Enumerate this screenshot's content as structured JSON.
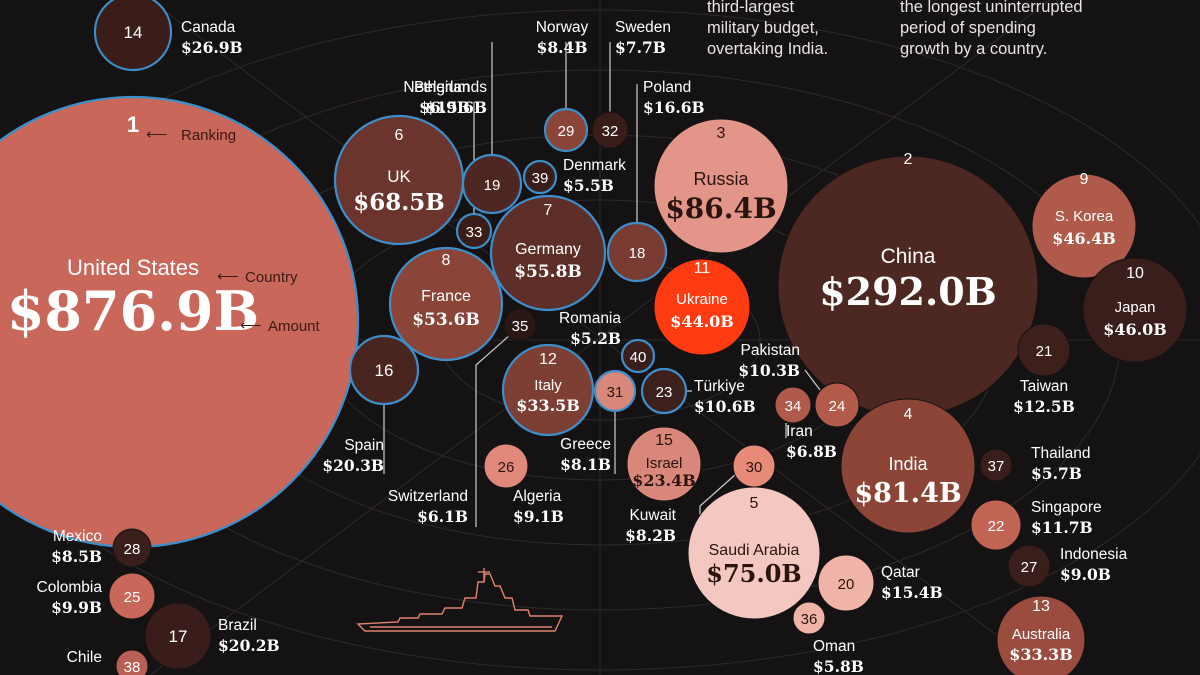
{
  "notes": {
    "top_center": [
      "third-largest",
      "military budget,",
      "overtaking India."
    ],
    "top_right": [
      "the longest uninterrupted",
      "period of spending",
      "growth by a country."
    ]
  },
  "legend_keys": {
    "ranking": "Ranking",
    "country": "Country",
    "amount": "Amount"
  },
  "colors": {
    "background": "#141213",
    "nato_outline": "#3d8fcc",
    "highlight": "#ff3b12",
    "text": "#ffffff"
  },
  "chart_data": {
    "type": "bubble",
    "title": "",
    "value_unit": "USD billions",
    "bubbles": [
      {
        "rank": 1,
        "country": "United States",
        "amount": "$876.9B",
        "value": 876.9,
        "nato": true
      },
      {
        "rank": 2,
        "country": "China",
        "amount": "$292.0B",
        "value": 292.0
      },
      {
        "rank": 3,
        "country": "Russia",
        "amount": "$86.4B",
        "value": 86.4
      },
      {
        "rank": 4,
        "country": "India",
        "amount": "$81.4B",
        "value": 81.4
      },
      {
        "rank": 5,
        "country": "Saudi Arabia",
        "amount": "$75.0B",
        "value": 75.0
      },
      {
        "rank": 6,
        "country": "UK",
        "amount": "$68.5B",
        "value": 68.5,
        "nato": true
      },
      {
        "rank": 7,
        "country": "Germany",
        "amount": "$55.8B",
        "value": 55.8,
        "nato": true
      },
      {
        "rank": 8,
        "country": "France",
        "amount": "$53.6B",
        "value": 53.6,
        "nato": true
      },
      {
        "rank": 9,
        "country": "S. Korea",
        "amount": "$46.4B",
        "value": 46.4
      },
      {
        "rank": 10,
        "country": "Japan",
        "amount": "$46.0B",
        "value": 46.0
      },
      {
        "rank": 11,
        "country": "Ukraine",
        "amount": "$44.0B",
        "value": 44.0,
        "highlight": true
      },
      {
        "rank": 12,
        "country": "Italy",
        "amount": "$33.5B",
        "value": 33.5,
        "nato": true
      },
      {
        "rank": 13,
        "country": "Australia",
        "amount": "$33.3B",
        "value": 33.3
      },
      {
        "rank": 14,
        "country": "Canada",
        "amount": "$26.9B",
        "value": 26.9,
        "nato": true
      },
      {
        "rank": 15,
        "country": "Israel",
        "amount": "$23.4B",
        "value": 23.4
      },
      {
        "rank": 16,
        "country": "Spain",
        "amount": "$20.3B",
        "value": 20.3,
        "nato": true
      },
      {
        "rank": 17,
        "country": "Brazil",
        "amount": "$20.2B",
        "value": 20.2
      },
      {
        "rank": 18,
        "country": "Poland",
        "amount": "$16.6B",
        "value": 16.6,
        "nato": true
      },
      {
        "rank": 19,
        "country": "Netherlands",
        "amount": "$15.6B",
        "value": 15.6,
        "nato": true
      },
      {
        "rank": 20,
        "country": "Qatar",
        "amount": "$15.4B",
        "value": 15.4
      },
      {
        "rank": 21,
        "country": "Taiwan",
        "amount": "$12.5B",
        "value": 12.5
      },
      {
        "rank": 22,
        "country": "Singapore",
        "amount": "$11.7B",
        "value": 11.7
      },
      {
        "rank": 23,
        "country": "Türkiye",
        "amount": "$10.6B",
        "value": 10.6,
        "nato": true
      },
      {
        "rank": 24,
        "country": "Pakistan",
        "amount": "$10.3B",
        "value": 10.3
      },
      {
        "rank": 25,
        "country": "Colombia",
        "amount": "$9.9B",
        "value": 9.9
      },
      {
        "rank": 26,
        "country": "Algeria",
        "amount": "$9.1B",
        "value": 9.1
      },
      {
        "rank": 27,
        "country": "Indonesia",
        "amount": "$9.0B",
        "value": 9.0
      },
      {
        "rank": 28,
        "country": "Mexico",
        "amount": "$8.5B",
        "value": 8.5
      },
      {
        "rank": 29,
        "country": "Norway",
        "amount": "$8.4B",
        "value": 8.4,
        "nato": true
      },
      {
        "rank": 30,
        "country": "Kuwait",
        "amount": "$8.2B",
        "value": 8.2
      },
      {
        "rank": 31,
        "country": "Greece",
        "amount": "$8.1B",
        "value": 8.1,
        "nato": true
      },
      {
        "rank": 32,
        "country": "Sweden",
        "amount": "$7.7B",
        "value": 7.7
      },
      {
        "rank": 33,
        "country": "Belgium",
        "amount": "$6.9B",
        "value": 6.9,
        "nato": true
      },
      {
        "rank": 34,
        "country": "Iran",
        "amount": "$6.8B",
        "value": 6.8
      },
      {
        "rank": 35,
        "country": "Switzerland",
        "amount": "$6.1B",
        "value": 6.1
      },
      {
        "rank": 36,
        "country": "Oman",
        "amount": "$5.8B",
        "value": 5.8
      },
      {
        "rank": 37,
        "country": "Thailand",
        "amount": "$5.7B",
        "value": 5.7
      },
      {
        "rank": 38,
        "country": "Chile",
        "amount": "",
        "value": null
      },
      {
        "rank": 39,
        "country": "Denmark",
        "amount": "$5.5B",
        "value": 5.5,
        "nato": true
      },
      {
        "rank": 40,
        "country": "Romania",
        "amount": "$5.2B",
        "value": 5.2,
        "nato": true
      }
    ]
  }
}
